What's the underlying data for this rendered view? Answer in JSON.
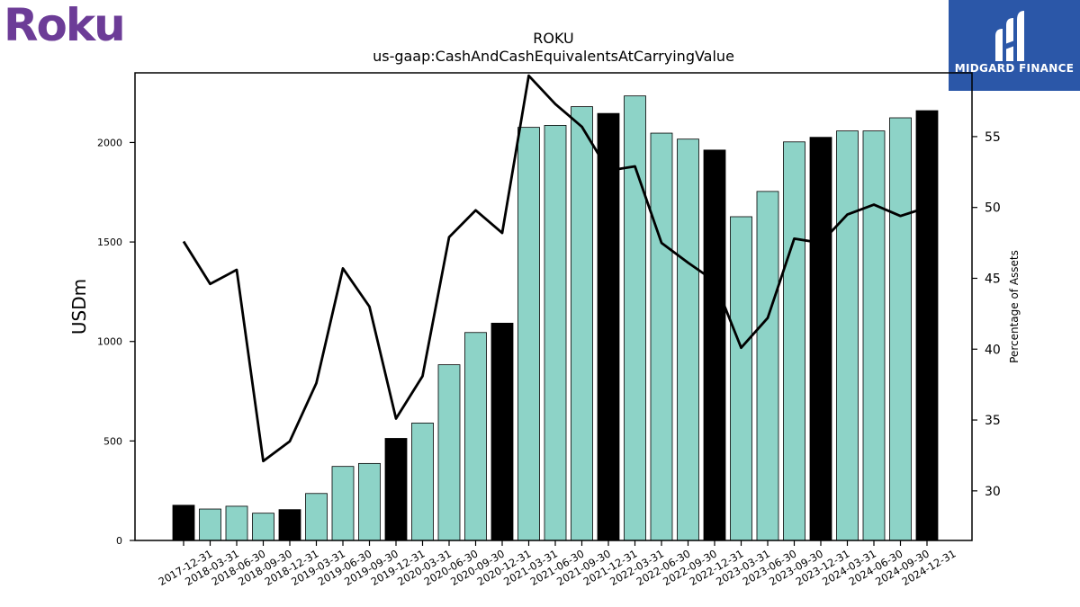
{
  "brand": {
    "company_logo_text": "Roku",
    "publisher_name": "MIDGARD FINANCE"
  },
  "colors": {
    "bar_regular": "#8dd3c7",
    "bar_year_end": "#000000",
    "line": "#000000",
    "roku_purple": "#6c3c97",
    "midgard_blue": "#2b57a8"
  },
  "chart_data": {
    "type": "bar",
    "title": "ROKU",
    "subtitle": "us-gaap:CashAndCashEquivalentsAtCarryingValue",
    "ylabel": "USDm",
    "y2label": "Percentage of Assets",
    "ylim": [
      0,
      2350
    ],
    "y2lim": [
      26.5,
      59.5
    ],
    "yticks": [
      0,
      500,
      1000,
      1500,
      2000
    ],
    "y2ticks": [
      30,
      35,
      40,
      45,
      50,
      55
    ],
    "categories": [
      "2017-12-31",
      "2018-03-31",
      "2018-06-30",
      "2018-09-30",
      "2018-12-31",
      "2019-03-31",
      "2019-06-30",
      "2019-09-30",
      "2019-12-31",
      "2020-03-31",
      "2020-06-30",
      "2020-09-30",
      "2020-12-31",
      "2021-03-31",
      "2021-06-30",
      "2021-09-30",
      "2021-12-31",
      "2022-03-31",
      "2022-06-30",
      "2022-09-30",
      "2022-12-31",
      "2023-03-31",
      "2023-06-30",
      "2023-09-30",
      "2023-12-31",
      "2024-03-31",
      "2024-06-30",
      "2024-09-30",
      "2024-12-31"
    ],
    "series": [
      {
        "kind": "bar",
        "values": [
          177,
          158,
          172,
          137,
          155,
          236,
          372,
          387,
          513,
          590,
          883,
          1045,
          1092,
          2076,
          2086,
          2180,
          2146,
          2234,
          2047,
          2017,
          1962,
          1627,
          1754,
          2003,
          2026,
          2058,
          2058,
          2124,
          2160
        ],
        "year_end": [
          true,
          false,
          false,
          false,
          true,
          false,
          false,
          false,
          true,
          false,
          false,
          false,
          true,
          false,
          false,
          false,
          true,
          false,
          false,
          false,
          true,
          false,
          false,
          false,
          true,
          false,
          false,
          false,
          true
        ]
      },
      {
        "kind": "line",
        "axis": "right",
        "values": [
          47.6,
          44.6,
          45.6,
          32.1,
          33.5,
          37.6,
          45.7,
          43.0,
          35.1,
          38.1,
          47.9,
          49.8,
          48.2,
          59.3,
          57.3,
          55.7,
          52.6,
          52.9,
          47.5,
          46.1,
          44.8,
          40.1,
          42.2,
          47.8,
          47.5,
          49.5,
          50.2,
          49.4,
          50.0
        ]
      }
    ],
    "grid": false,
    "legend": "none"
  }
}
